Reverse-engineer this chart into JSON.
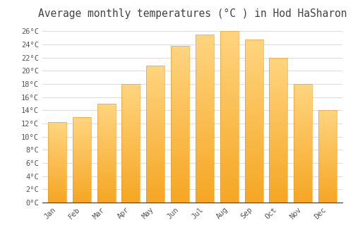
{
  "title": "Average monthly temperatures (°C ) in Hod HaSharon",
  "months": [
    "Jan",
    "Feb",
    "Mar",
    "Apr",
    "May",
    "Jun",
    "Jul",
    "Aug",
    "Sep",
    "Oct",
    "Nov",
    "Dec"
  ],
  "temperatures": [
    12.2,
    13.0,
    15.0,
    18.0,
    20.8,
    23.8,
    25.5,
    26.0,
    24.8,
    22.0,
    18.0,
    14.0
  ],
  "bar_color_bottom": "#F5A623",
  "bar_color_top": "#FFD580",
  "background_color": "#FFFFFF",
  "grid_color": "#DDDDDD",
  "text_color": "#555555",
  "title_color": "#444444",
  "ylim": [
    0,
    27
  ],
  "yticks": [
    0,
    2,
    4,
    6,
    8,
    10,
    12,
    14,
    16,
    18,
    20,
    22,
    24,
    26
  ],
  "title_fontsize": 10.5,
  "tick_fontsize": 7.5,
  "bar_width": 0.75
}
